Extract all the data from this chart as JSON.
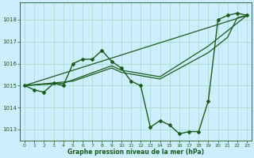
{
  "title": "Graphe pression niveau de la mer (hPa)",
  "bg_color": "#cceeff",
  "grid_color": "#aaddcc",
  "line_color": "#1a5c1a",
  "xlim": [
    -0.5,
    23.5
  ],
  "ylim": [
    1012.5,
    1018.8
  ],
  "yticks": [
    1013,
    1014,
    1015,
    1016,
    1017,
    1018
  ],
  "xticks": [
    0,
    1,
    2,
    3,
    4,
    5,
    6,
    7,
    8,
    9,
    10,
    11,
    12,
    13,
    14,
    15,
    16,
    17,
    18,
    19,
    20,
    21,
    22,
    23
  ],
  "series": [
    {
      "x": [
        0,
        1,
        2,
        3,
        4,
        5,
        6,
        7,
        8,
        9,
        10,
        11,
        12,
        13,
        14,
        15,
        16,
        17,
        18,
        19,
        20,
        21,
        22,
        23
      ],
      "y": [
        1015.0,
        1014.8,
        1014.7,
        1015.1,
        1015.0,
        1016.0,
        1016.2,
        1016.2,
        1016.6,
        1016.1,
        1015.8,
        1015.2,
        1015.0,
        1013.1,
        1013.4,
        1013.2,
        1012.8,
        1012.9,
        1012.9,
        1014.3,
        1018.0,
        1018.2,
        1018.3,
        1018.2
      ],
      "marker": "D",
      "markersize": 2.0,
      "linewidth": 1.0
    },
    {
      "x": [
        0,
        5,
        9,
        10,
        14,
        19,
        21,
        22,
        23
      ],
      "y": [
        1015.0,
        1015.2,
        1015.8,
        1015.6,
        1015.3,
        1016.5,
        1017.2,
        1018.1,
        1018.2
      ],
      "marker": null,
      "linewidth": 0.9
    },
    {
      "x": [
        0,
        23
      ],
      "y": [
        1015.0,
        1018.2
      ],
      "marker": null,
      "linewidth": 0.9
    },
    {
      "x": [
        0,
        4,
        9,
        10,
        14,
        19,
        21,
        23
      ],
      "y": [
        1015.0,
        1015.1,
        1015.9,
        1015.7,
        1015.4,
        1016.8,
        1017.5,
        1018.2
      ],
      "marker": null,
      "linewidth": 0.9
    }
  ]
}
